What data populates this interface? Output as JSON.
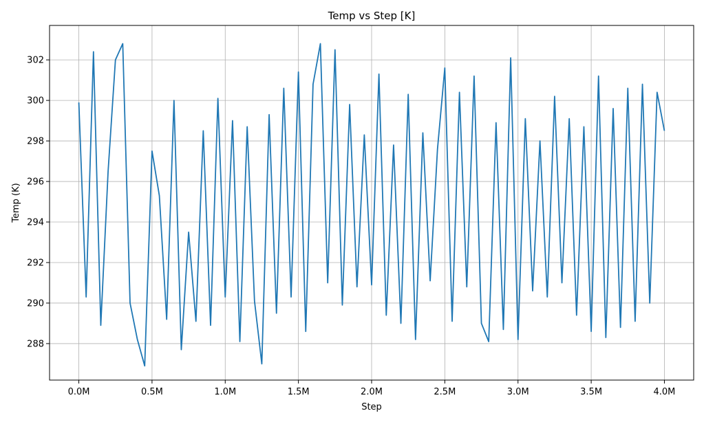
{
  "chart_data": {
    "type": "line",
    "title": "Temp vs Step [K]",
    "xlabel": "Step",
    "ylabel": "Temp (K)",
    "xlim": [
      -200000,
      4200000
    ],
    "ylim": [
      286.2,
      303.7
    ],
    "x_ticks": [
      {
        "value": 0,
        "label": "0.0M"
      },
      {
        "value": 500000,
        "label": "0.5M"
      },
      {
        "value": 1000000,
        "label": "1.0M"
      },
      {
        "value": 1500000,
        "label": "1.5M"
      },
      {
        "value": 2000000,
        "label": "2.0M"
      },
      {
        "value": 2500000,
        "label": "2.5M"
      },
      {
        "value": 3000000,
        "label": "3.0M"
      },
      {
        "value": 3500000,
        "label": "3.5M"
      },
      {
        "value": 4000000,
        "label": "4.0M"
      }
    ],
    "y_ticks": [
      {
        "value": 288,
        "label": "288"
      },
      {
        "value": 290,
        "label": "290"
      },
      {
        "value": 292,
        "label": "292"
      },
      {
        "value": 294,
        "label": "294"
      },
      {
        "value": 296,
        "label": "296"
      },
      {
        "value": 298,
        "label": "298"
      },
      {
        "value": 300,
        "label": "300"
      },
      {
        "value": 302,
        "label": "302"
      }
    ],
    "grid": true,
    "series": [
      {
        "color": "#1f77b4",
        "x": [
          0,
          50000,
          100000,
          150000,
          200000,
          250000,
          300000,
          350000,
          400000,
          450000,
          500000,
          550000,
          600000,
          650000,
          700000,
          750000,
          800000,
          850000,
          900000,
          950000,
          1000000,
          1050000,
          1100000,
          1150000,
          1200000,
          1250000,
          1300000,
          1350000,
          1400000,
          1450000,
          1500000,
          1550000,
          1600000,
          1650000,
          1700000,
          1750000,
          1800000,
          1850000,
          1900000,
          1950000,
          2000000,
          2050000,
          2100000,
          2150000,
          2200000,
          2250000,
          2300000,
          2350000,
          2400000,
          2450000,
          2500000,
          2550000,
          2600000,
          2650000,
          2700000,
          2750000,
          2800000,
          2850000,
          2900000,
          2950000,
          3000000,
          3050000,
          3100000,
          3150000,
          3200000,
          3250000,
          3300000,
          3350000,
          3400000,
          3450000,
          3500000,
          3550000,
          3600000,
          3650000,
          3700000,
          3750000,
          3800000,
          3850000,
          3900000,
          3950000,
          4000000
        ],
        "y": [
          299.9,
          290.3,
          302.4,
          288.9,
          296.5,
          302.0,
          302.8,
          290.0,
          288.2,
          286.9,
          297.5,
          295.3,
          289.2,
          300.0,
          287.7,
          293.5,
          289.1,
          298.5,
          288.9,
          300.1,
          290.3,
          299.0,
          288.1,
          298.7,
          290.1,
          287.0,
          299.3,
          289.5,
          300.6,
          290.3,
          301.4,
          288.6,
          300.8,
          302.8,
          291.0,
          302.5,
          289.9,
          299.8,
          290.8,
          298.3,
          290.9,
          301.3,
          289.4,
          297.8,
          289.0,
          300.3,
          288.2,
          298.4,
          291.1,
          297.6,
          301.6,
          289.1,
          300.4,
          290.8,
          301.2,
          289.0,
          288.1,
          298.9,
          288.7,
          302.1,
          288.2,
          299.1,
          290.6,
          298.0,
          290.3,
          300.2,
          291.0,
          299.1,
          289.4,
          298.7,
          288.6,
          301.2,
          288.3,
          299.6,
          288.8,
          300.6,
          289.1,
          300.8,
          290.0,
          300.4,
          298.5
        ]
      }
    ]
  }
}
